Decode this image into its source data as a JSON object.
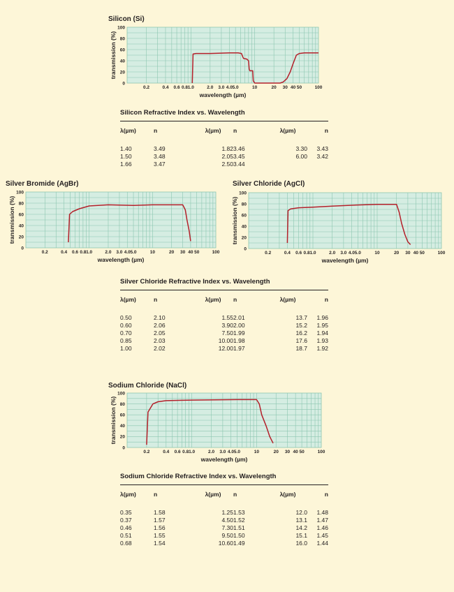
{
  "chart_data": [
    {
      "type": "line",
      "title": "Silicon (Si)",
      "xlabel": "wavelength (µm)",
      "ylabel": "transmission (%)",
      "x_scale": "log",
      "xlim": [
        0.1,
        100
      ],
      "ylim": [
        0,
        100
      ],
      "yticks": [
        "0",
        "20",
        "40",
        "60",
        "80",
        "100"
      ],
      "xticks": [
        "0.2",
        "0.4",
        "0.6",
        "0.8",
        "1.0",
        "2.0",
        "3.0",
        "4.0",
        "5.0",
        "10",
        "20",
        "30",
        "40",
        "50",
        "100"
      ],
      "grid": true,
      "series": [
        {
          "color": "#b4202a",
          "x": [
            1.05,
            1.08,
            1.2,
            2.0,
            4.0,
            5.5,
            6.2,
            6.5,
            6.7,
            7.5,
            8.0,
            8.2,
            8.4,
            8.6,
            9.3,
            9.5,
            10,
            11,
            15,
            25,
            28,
            32,
            36,
            40,
            45,
            50,
            60,
            80,
            100
          ],
          "y": [
            0,
            52,
            53,
            53,
            54,
            54,
            53,
            47,
            44,
            43,
            40,
            25,
            22,
            22,
            22,
            4,
            0,
            0,
            0,
            0,
            2,
            8,
            20,
            35,
            50,
            53,
            54,
            54,
            54
          ]
        }
      ]
    },
    {
      "type": "line",
      "title": "Silver Bromide (AgBr)",
      "xlabel": "wavelength (µm)",
      "ylabel": "transmission (%)",
      "x_scale": "log",
      "xlim": [
        0.1,
        100
      ],
      "ylim": [
        0,
        100
      ],
      "yticks": [
        "0",
        "20",
        "40",
        "60",
        "80",
        "100"
      ],
      "xticks": [
        "0.2",
        "0.4",
        "0.6",
        "0.8",
        "1.0",
        "2.0",
        "3.0",
        "4.0",
        "5.0",
        "10",
        "20",
        "30",
        "40",
        "50",
        "100"
      ],
      "grid": true,
      "series": [
        {
          "color": "#b4202a",
          "x": [
            0.47,
            0.49,
            0.55,
            0.7,
            1.0,
            2.0,
            5.0,
            10,
            20,
            30,
            33,
            35,
            38,
            40
          ],
          "y": [
            10,
            60,
            65,
            70,
            75,
            77,
            76,
            77,
            77,
            77,
            68,
            50,
            30,
            12
          ]
        }
      ]
    },
    {
      "type": "line",
      "title": "Silver Chloride (AgCl)",
      "xlabel": "wavelength (µm)",
      "ylabel": "transmission (%)",
      "x_scale": "log",
      "xlim": [
        0.1,
        100
      ],
      "ylim": [
        0,
        100
      ],
      "yticks": [
        "0",
        "20",
        "40",
        "60",
        "80",
        "100"
      ],
      "xticks": [
        "0.2",
        "0.4",
        "0.6",
        "0.8",
        "1.0",
        "2.0",
        "3.0",
        "4.0",
        "5.0",
        "10",
        "20",
        "30",
        "40",
        "50",
        "100"
      ],
      "grid": true,
      "series": [
        {
          "color": "#b4202a",
          "x": [
            0.4,
            0.41,
            0.45,
            0.6,
            1.0,
            2.0,
            5.0,
            10,
            20,
            22,
            24,
            27,
            30,
            33
          ],
          "y": [
            10,
            68,
            71,
            73,
            74,
            76,
            78,
            79,
            79,
            65,
            45,
            25,
            12,
            7
          ]
        }
      ]
    },
    {
      "type": "line",
      "title": "Sodium Chloride (NaCl)",
      "xlabel": "wavelength (µm)",
      "ylabel": "transmission (%)",
      "x_scale": "log",
      "xlim": [
        0.1,
        100
      ],
      "ylim": [
        0,
        100
      ],
      "yticks": [
        "0",
        "20",
        "40",
        "60",
        "80",
        "100"
      ],
      "xticks": [
        "0.2",
        "0.4",
        "0.6",
        "0.8",
        "1.0",
        "2.0",
        "3.0",
        "4.0",
        "5.0",
        "10",
        "20",
        "30",
        "40",
        "50",
        "100"
      ],
      "grid": true,
      "series": [
        {
          "color": "#b4202a",
          "x": [
            0.2,
            0.21,
            0.25,
            0.3,
            0.4,
            1.0,
            5.0,
            10,
            11,
            12,
            14,
            16,
            18
          ],
          "y": [
            5,
            65,
            80,
            84,
            86,
            87,
            88,
            88,
            80,
            60,
            40,
            20,
            8
          ]
        }
      ]
    }
  ],
  "tables": [
    {
      "title": "Silicon Refractive Index vs. Wavelength",
      "headers": [
        "λ(µm)",
        "n",
        "λ(µm)",
        "n",
        "λ(µm)",
        "n"
      ],
      "rows": [
        [
          "1.40",
          "3.49",
          "1.82",
          "3.46",
          "3.30",
          "3.43"
        ],
        [
          "1.50",
          "3.48",
          "2.05",
          "3.45",
          "6.00",
          "3.42"
        ],
        [
          "1.66",
          "3.47",
          "2.50",
          "3.44",
          "",
          ""
        ]
      ]
    },
    {
      "title": "Silver Chloride Refractive Index vs. Wavelength",
      "headers": [
        "λ(µm)",
        "n",
        "λ(µm)",
        "n",
        "λ(µm)",
        "n"
      ],
      "rows": [
        [
          "0.50",
          "2.10",
          "1.55",
          "2.01",
          "13.7",
          "1.96"
        ],
        [
          "0.60",
          "2.06",
          "3.90",
          "2.00",
          "15.2",
          "1.95"
        ],
        [
          "0.70",
          "2.05",
          "7.50",
          "1.99",
          "16.2",
          "1.94"
        ],
        [
          "0.85",
          "2.03",
          "10.00",
          "1.98",
          "17.6",
          "1.93"
        ],
        [
          "1.00",
          "2.02",
          "12.00",
          "1.97",
          "18.7",
          "1.92"
        ]
      ]
    },
    {
      "title": "Sodium Chloride Refractive Index vs. Wavelength",
      "headers": [
        "λ(µm)",
        "n",
        "λ(µm)",
        "n",
        "λ(µm)",
        "n"
      ],
      "rows": [
        [
          "0.35",
          "1.58",
          "1.25",
          "1.53",
          "12.0",
          "1.48"
        ],
        [
          "0.37",
          "1.57",
          "4.50",
          "1.52",
          "13.1",
          "1.47"
        ],
        [
          "0.46",
          "1.56",
          "7.30",
          "1.51",
          "14.2",
          "1.46"
        ],
        [
          "0.51",
          "1.55",
          "9.50",
          "1.50",
          "15.1",
          "1.45"
        ],
        [
          "0.68",
          "1.54",
          "10.60",
          "1.49",
          "16.0",
          "1.44"
        ]
      ]
    }
  ]
}
